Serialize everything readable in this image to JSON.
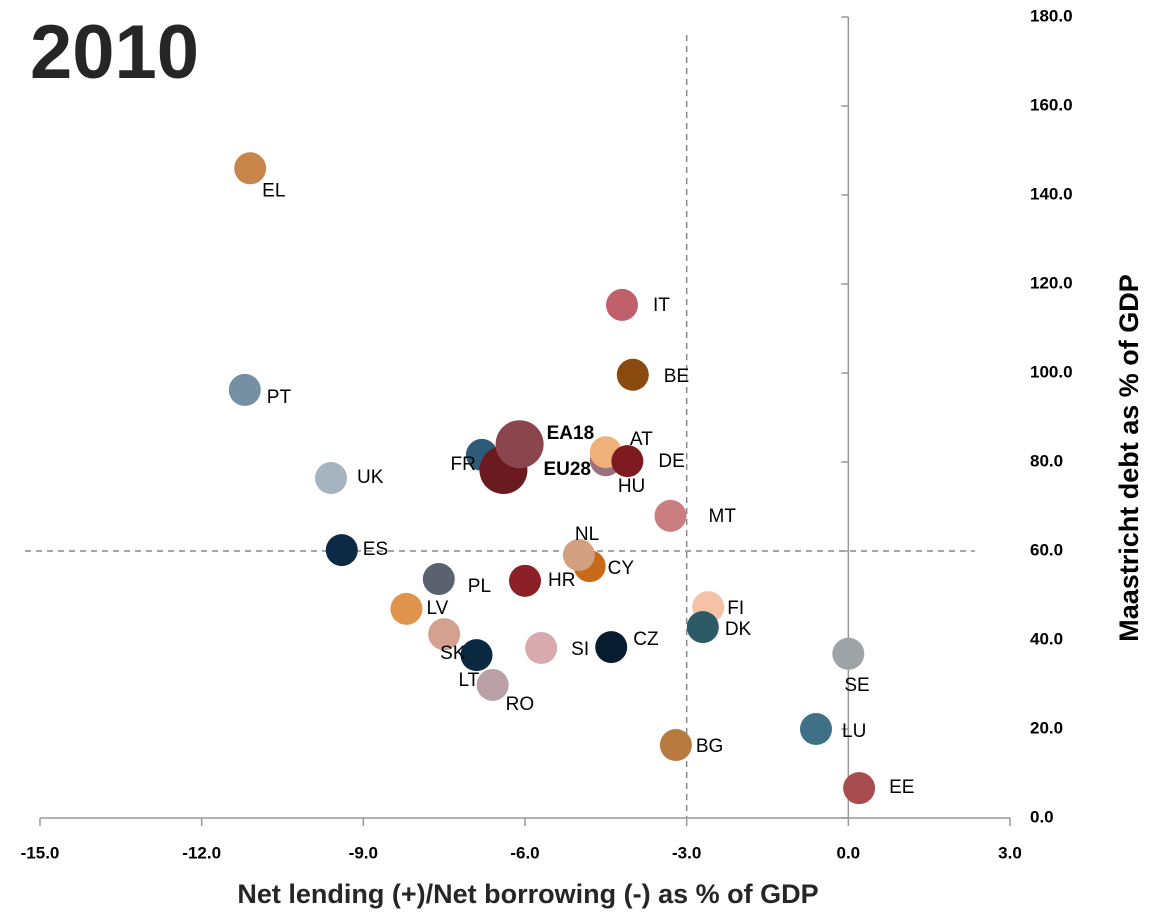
{
  "chart_data": {
    "type": "scatter",
    "title": "2010",
    "x_label": "Net lending (+)/Net borrowing (-) as % of GDP",
    "y_label": "Maastricht debt as % of GDP",
    "labels": [
      "EL",
      "PT",
      "UK",
      "ES",
      "PL",
      "LV",
      "SK",
      "LT",
      "RO",
      "SI",
      "HR",
      "FR",
      "EU28",
      "EA18",
      "HU",
      "AT",
      "DE",
      "IT",
      "BE",
      "MT",
      "CY",
      "NL",
      "CZ",
      "FI",
      "DK",
      "SE",
      "LU",
      "BG",
      "EE"
    ],
    "x": [
      -11.1,
      -11.2,
      -9.6,
      -9.4,
      -7.6,
      -8.2,
      -7.5,
      -6.9,
      -6.6,
      -5.7,
      -6.0,
      -6.8,
      -6.4,
      -6.1,
      -4.5,
      -4.5,
      -4.1,
      -4.2,
      -4.0,
      -3.3,
      -4.8,
      -5.0,
      -4.4,
      -2.6,
      -2.7,
      0.0,
      -0.6,
      -3.2,
      0.2
    ],
    "y": [
      146,
      96.2,
      76.4,
      60.2,
      53.7,
      47,
      41.3,
      36.6,
      29.9,
      38.2,
      53.3,
      81.6,
      78.2,
      84,
      80.4,
      82.2,
      80.2,
      115.3,
      99.6,
      67.9,
      56.6,
      59.1,
      38.4,
      47.4,
      42.9,
      36.9,
      20,
      16.4,
      6.7
    ],
    "colors": [
      "#c8864a",
      "#7590a3",
      "#a6b4c0",
      "#0d2a45",
      "#5c6170",
      "#e0934a",
      "#d4a08f",
      "#0a2840",
      "#bba0a8",
      "#d9aaae",
      "#8b2028",
      "#2e5b78",
      "#6b1a20",
      "#8b454c",
      "#9a7080",
      "#f0b07a",
      "#7d1a1f",
      "#c0606a",
      "#8a4a0e",
      "#c97f82",
      "#c86a1a",
      "#d3a080",
      "#081c30",
      "#f5c2a8",
      "#2c5a66",
      "#9ea3a8",
      "#3e7088",
      "#b87a3e",
      "#a84c50"
    ],
    "emphasized": [
      false,
      false,
      false,
      false,
      false,
      false,
      false,
      false,
      false,
      false,
      false,
      false,
      true,
      true,
      false,
      false,
      false,
      false,
      false,
      false,
      false,
      false,
      false,
      false,
      false,
      false,
      false,
      false,
      false
    ],
    "xlim": [
      -15,
      3
    ],
    "ylim": [
      0,
      180
    ],
    "xticks": [
      {
        "value": -15,
        "label": "-15.0"
      },
      {
        "value": -12,
        "label": "-12.0"
      },
      {
        "value": -9,
        "label": "-9.0"
      },
      {
        "value": -6,
        "label": "-6.0"
      },
      {
        "value": -3,
        "label": "-3.0"
      },
      {
        "value": 0,
        "label": "0.0"
      },
      {
        "value": 3,
        "label": "3.0"
      }
    ],
    "yticks": [
      {
        "value": 0,
        "label": "0.0"
      },
      {
        "value": 20,
        "label": "20.0"
      },
      {
        "value": 40,
        "label": "40.0"
      },
      {
        "value": 60,
        "label": "60.0"
      },
      {
        "value": 80,
        "label": "80.0"
      },
      {
        "value": 100,
        "label": "100.0"
      },
      {
        "value": 120,
        "label": "120.0"
      },
      {
        "value": 140,
        "label": "140.0"
      },
      {
        "value": 160,
        "label": "160.0"
      },
      {
        "value": 180,
        "label": "180.0"
      }
    ],
    "reference_lines": {
      "x": -3,
      "y": 60
    }
  }
}
